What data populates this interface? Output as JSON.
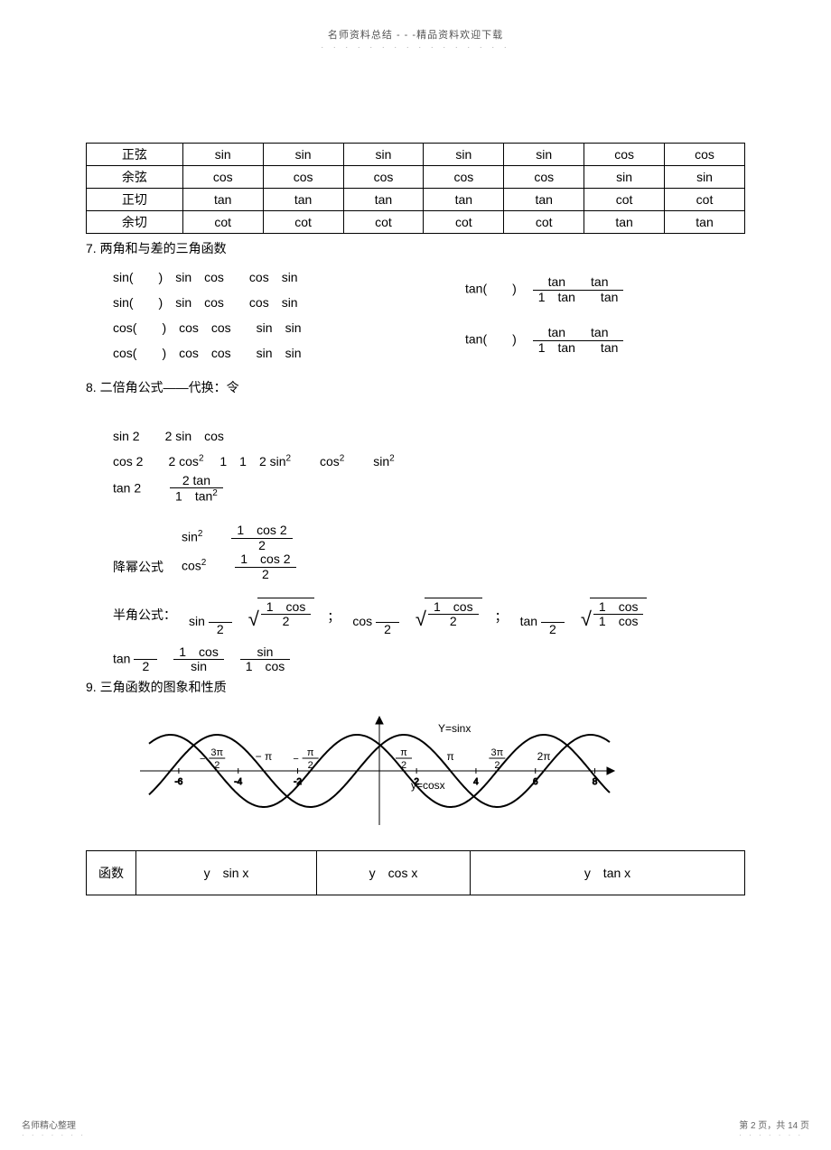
{
  "header": {
    "text": "名师资料总结 - - -精品资料欢迎下载",
    "dots": "· · · · · · · · · · · · · · · ·"
  },
  "table1": {
    "rows": [
      {
        "label": "正弦",
        "cells": [
          "sin",
          "sin",
          "sin",
          "sin",
          "sin",
          "cos",
          "cos"
        ]
      },
      {
        "label": "余弦",
        "cells": [
          "cos",
          "cos",
          "cos",
          "cos",
          "cos",
          "sin",
          "sin"
        ]
      },
      {
        "label": "正切",
        "cells": [
          "tan",
          "tan",
          "tan",
          "tan",
          "tan",
          "cot",
          "cot"
        ]
      },
      {
        "label": "余切",
        "cells": [
          "cot",
          "cot",
          "cot",
          "cot",
          "cot",
          "tan",
          "tan"
        ]
      }
    ]
  },
  "section7": {
    "title": "7.  两角和与差的三角函数"
  },
  "sumdiff": {
    "left": [
      "sin(　　)　sin　cos　　cos　sin",
      "sin(　　)　sin　cos　　cos　sin",
      "cos(　　)　cos　cos　　sin　sin",
      "cos(　　)　cos　cos　　sin　sin"
    ],
    "right": [
      {
        "prefix": "tan(　　)　",
        "num": "tan　　tan",
        "den": "1　tan　　tan"
      },
      {
        "prefix": "tan(　　)　",
        "num": "tan　　tan",
        "den": "1　tan　　tan"
      }
    ]
  },
  "section8": {
    "title": "8.  二倍角公式——代换：令"
  },
  "double": {
    "l1": "sin 2　　2 sin　cos",
    "l2_a": "cos 2　　2 cos",
    "l2_b": "　1　1　2 sin",
    "l2_c": "　　cos",
    "l2_d": "　　sin",
    "l3_prefix": "tan 2　　",
    "l3_num": "2 tan",
    "l3_den_a": "1　tan"
  },
  "power": {
    "label": "降幂公式",
    "r1_lhs": "sin",
    "r1_num": "1　cos 2",
    "r1_den": "2",
    "r2_lhs": "cos",
    "r2_num": "1　cos 2",
    "r2_den": "2"
  },
  "half": {
    "label": "半角公式：",
    "sin_num": "1　cos",
    "sin_den": "2",
    "cos_num": "1　cos",
    "cos_den": "2",
    "tan_num": "1　cos",
    "tan_den": "1　cos",
    "tan2_num1": "1　cos",
    "tan2_den1": "sin",
    "tan2_num2": "sin",
    "tan2_den2": "1　cos"
  },
  "section9": {
    "title": "9.  三角函数的图象和性质"
  },
  "graph": {
    "label_sin": "Y=sinx",
    "label_cos": "y=cosx",
    "xticks": [
      "-6",
      "-4",
      "-2",
      "2",
      "4",
      "6",
      "8"
    ],
    "frac_labels": [
      "3π/2",
      "π",
      "π/2",
      "π/2",
      "π",
      "3π/2",
      "2π"
    ],
    "curve_color": "#000000",
    "axis_color": "#000000",
    "xlim": [
      -7,
      8.5
    ],
    "ylim": [
      -1.2,
      1.2
    ]
  },
  "table2": {
    "h": "函数",
    "c1": "y　sin x",
    "c2": "y　cos x",
    "c3": "y　tan x"
  },
  "footer": {
    "left": "名师精心整理",
    "right": "第 2 页，共 14 页",
    "dots": "· · · · · · ·"
  }
}
